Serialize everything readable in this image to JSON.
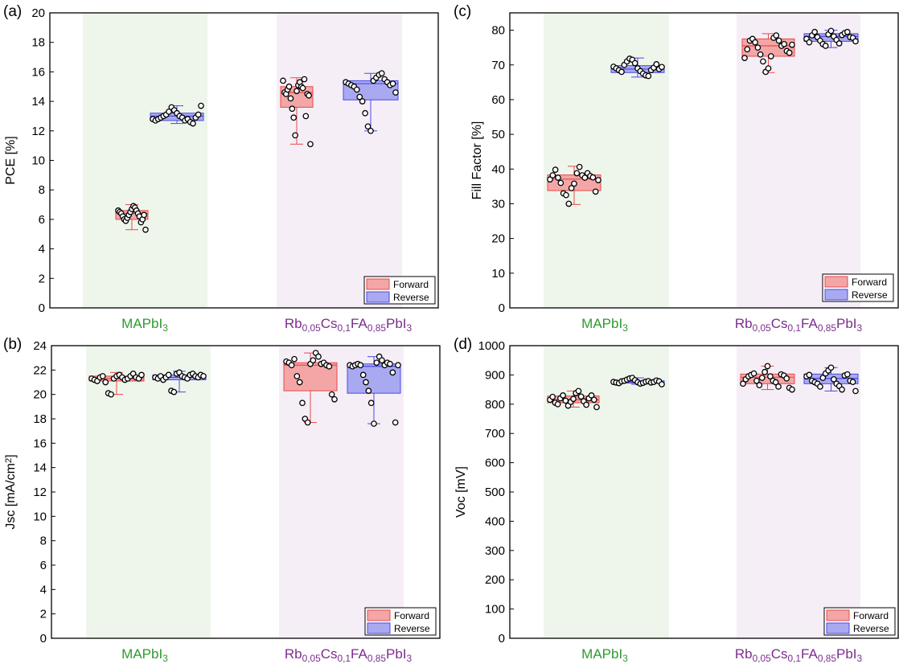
{
  "colors": {
    "forward_fill": "#f4a6a6",
    "forward_edge": "#e8484a",
    "reverse_fill": "#a9a9f2",
    "reverse_edge": "#4a4ae0",
    "band_green": "#eef6ec",
    "band_purple": "#f6eef7",
    "label_green": "#2e9a2e",
    "label_purple": "#7b2d8e"
  },
  "chart_data": [
    {
      "type": "box",
      "panel_label": "(a)",
      "ylabel": "PCE [%]",
      "ylim": [
        0,
        20
      ],
      "yticks": [
        "0",
        "2",
        "4",
        "6",
        "8",
        "10",
        "12",
        "14",
        "16",
        "18",
        "20"
      ],
      "categories": [
        {
          "parts": [
            {
              "t": "MAPbI",
              "s": "n"
            },
            {
              "t": "3",
              "s": "sub"
            }
          ]
        },
        {
          "parts": [
            {
              "t": "Rb",
              "s": "n"
            },
            {
              "t": "0,05",
              "s": "sub"
            },
            {
              "t": "Cs",
              "s": "n"
            },
            {
              "t": "0,1",
              "s": "sub"
            },
            {
              "t": "FA",
              "s": "n"
            },
            {
              "t": "0,85",
              "s": "sub"
            },
            {
              "t": "PbI",
              "s": "n"
            },
            {
              "t": "3",
              "s": "sub"
            }
          ]
        }
      ],
      "legend": [
        "Forward",
        "Reverse"
      ],
      "boxes": [
        {
          "category": 0,
          "series": "Forward",
          "min": 5.3,
          "q1": 6.0,
          "median": 6.4,
          "q3": 6.6,
          "max": 7.0,
          "points": [
            6.6,
            6.5,
            6.4,
            6.2,
            6.0,
            5.9,
            6.1,
            6.3,
            6.5,
            6.7,
            6.9,
            6.8,
            6.6,
            6.4,
            6.2,
            5.8,
            6.0,
            6.3,
            5.3
          ]
        },
        {
          "category": 0,
          "series": "Reverse",
          "min": 12.5,
          "q1": 12.7,
          "median": 13.0,
          "q3": 13.2,
          "max": 13.7,
          "points": [
            12.8,
            12.7,
            12.8,
            12.9,
            13.0,
            13.1,
            13.3,
            13.6,
            13.4,
            13.2,
            13.0,
            12.9,
            12.7,
            12.8,
            12.6,
            12.5,
            12.9,
            13.1,
            13.7
          ]
        },
        {
          "category": 1,
          "series": "Forward",
          "min": 11.1,
          "q1": 13.6,
          "median": 14.6,
          "q3": 15.0,
          "max": 15.6,
          "points": [
            15.4,
            14.6,
            14.5,
            14.8,
            15.0,
            14.2,
            13.5,
            12.9,
            11.7,
            14.7,
            15.1,
            15.3,
            15.0,
            14.9,
            15.5,
            13.0,
            14.5,
            14.4,
            11.1
          ]
        },
        {
          "category": 1,
          "series": "Reverse",
          "min": 12.0,
          "q1": 14.1,
          "median": 15.2,
          "q3": 15.4,
          "max": 15.9,
          "points": [
            15.3,
            15.2,
            15.1,
            15.0,
            14.8,
            14.3,
            14.0,
            13.2,
            12.3,
            12.0,
            15.4,
            15.6,
            15.8,
            15.9,
            15.5,
            15.3,
            15.1,
            15.2,
            14.6
          ]
        }
      ]
    },
    {
      "type": "box",
      "panel_label": "(b)",
      "ylabel_parts": [
        {
          "t": "Jsc [mA/cm",
          "s": "n"
        },
        {
          "t": "2",
          "s": "sup"
        },
        {
          "t": "]",
          "s": "n"
        }
      ],
      "ylim": [
        0,
        24
      ],
      "yticks": [
        "0",
        "2",
        "4",
        "6",
        "8",
        "10",
        "12",
        "14",
        "16",
        "18",
        "20",
        "22",
        "24"
      ],
      "categories": [
        {
          "parts": [
            {
              "t": "MAPbI",
              "s": "n"
            },
            {
              "t": "3",
              "s": "sub"
            }
          ]
        },
        {
          "parts": [
            {
              "t": "Rb",
              "s": "n"
            },
            {
              "t": "0,05",
              "s": "sub"
            },
            {
              "t": "Cs",
              "s": "n"
            },
            {
              "t": "0,1",
              "s": "sub"
            },
            {
              "t": "FA",
              "s": "n"
            },
            {
              "t": "0,85",
              "s": "sub"
            },
            {
              "t": "PbI",
              "s": "n"
            },
            {
              "t": "3",
              "s": "sub"
            }
          ]
        }
      ],
      "legend": [
        "Forward",
        "Reverse"
      ],
      "boxes": [
        {
          "category": 0,
          "series": "Forward",
          "min": 20.0,
          "q1": 21.1,
          "median": 21.3,
          "q3": 21.5,
          "max": 21.8,
          "points": [
            21.3,
            21.2,
            21.1,
            21.4,
            21.5,
            21.0,
            20.1,
            20.0,
            21.3,
            21.5,
            21.6,
            21.4,
            21.2,
            21.3,
            21.5,
            21.7,
            21.4,
            21.3,
            21.6
          ]
        },
        {
          "category": 0,
          "series": "Reverse",
          "min": 20.2,
          "q1": 21.2,
          "median": 21.4,
          "q3": 21.6,
          "max": 21.9,
          "points": [
            21.4,
            21.3,
            21.5,
            21.2,
            21.4,
            21.6,
            20.3,
            20.2,
            21.7,
            21.8,
            21.5,
            21.4,
            21.3,
            21.6,
            21.7,
            21.5,
            21.4,
            21.6,
            21.5
          ]
        },
        {
          "category": 1,
          "series": "Forward",
          "min": 17.7,
          "q1": 20.3,
          "median": 22.4,
          "q3": 22.6,
          "max": 23.4,
          "points": [
            22.7,
            22.6,
            22.4,
            22.9,
            21.5,
            21.0,
            19.3,
            18.0,
            17.7,
            22.5,
            22.8,
            23.4,
            23.1,
            22.5,
            22.6,
            22.4,
            22.3,
            20.0,
            19.6
          ]
        },
        {
          "category": 1,
          "series": "Reverse",
          "min": 17.6,
          "q1": 20.1,
          "median": 22.3,
          "q3": 22.5,
          "max": 23.1,
          "points": [
            22.4,
            22.3,
            22.4,
            22.5,
            22.4,
            21.6,
            21.0,
            20.3,
            19.3,
            17.6,
            22.6,
            23.1,
            22.8,
            22.4,
            22.6,
            22.5,
            21.8,
            17.7,
            22.4
          ]
        }
      ]
    },
    {
      "type": "box",
      "panel_label": "(c)",
      "ylabel": "Fill Factor [%]",
      "ylim": [
        0,
        85
      ],
      "yticks": [
        "0",
        "10",
        "20",
        "30",
        "40",
        "50",
        "60",
        "70",
        "80"
      ],
      "categories": [
        {
          "parts": [
            {
              "t": "MAPbI",
              "s": "n"
            },
            {
              "t": "3",
              "s": "sub"
            }
          ]
        },
        {
          "parts": [
            {
              "t": "Rb",
              "s": "n"
            },
            {
              "t": "0,05",
              "s": "sub"
            },
            {
              "t": "Cs",
              "s": "n"
            },
            {
              "t": "0,1",
              "s": "sub"
            },
            {
              "t": "FA",
              "s": "n"
            },
            {
              "t": "0,85",
              "s": "sub"
            },
            {
              "t": "PbI",
              "s": "n"
            },
            {
              "t": "3",
              "s": "sub"
            }
          ]
        }
      ],
      "legend": [
        "Forward",
        "Reverse"
      ],
      "boxes": [
        {
          "category": 0,
          "series": "Forward",
          "min": 29.8,
          "q1": 33.8,
          "median": 37.1,
          "q3": 38.3,
          "max": 40.8,
          "points": [
            37.0,
            38.2,
            39.8,
            37.5,
            36.0,
            33.0,
            32.5,
            30.0,
            34.5,
            35.8,
            38.8,
            40.6,
            38.2,
            37.5,
            38.8,
            38.0,
            37.6,
            33.5,
            36.8
          ]
        },
        {
          "category": 0,
          "series": "Reverse",
          "min": 66.5,
          "q1": 67.8,
          "median": 68.8,
          "q3": 69.8,
          "max": 72.0,
          "points": [
            69.5,
            69.0,
            68.5,
            68.0,
            70.0,
            71.0,
            71.8,
            71.5,
            70.5,
            69.0,
            68.2,
            67.5,
            67.0,
            66.8,
            68.5,
            69.2,
            70.2,
            68.8,
            69.4
          ]
        },
        {
          "category": 1,
          "series": "Forward",
          "min": 67.8,
          "q1": 72.5,
          "median": 75.5,
          "q3": 77.5,
          "max": 79.0,
          "points": [
            72.0,
            74.5,
            77.0,
            77.5,
            76.5,
            75.0,
            73.0,
            71.0,
            68.0,
            69.0,
            72.5,
            77.8,
            78.5,
            77.0,
            75.5,
            76.0,
            74.0,
            73.5,
            75.8
          ]
        },
        {
          "category": 1,
          "series": "Reverse",
          "min": 75.0,
          "q1": 76.8,
          "median": 78.2,
          "q3": 79.0,
          "max": 80.0,
          "points": [
            77.5,
            76.5,
            78.5,
            79.5,
            78.0,
            77.0,
            76.0,
            75.5,
            78.8,
            79.8,
            78.2,
            77.2,
            76.2,
            78.6,
            79.2,
            79.5,
            78.0,
            77.8,
            76.8
          ]
        }
      ]
    },
    {
      "type": "box",
      "panel_label": "(d)",
      "ylabel": "Voc [mV]",
      "ylim": [
        0,
        1000
      ],
      "yticks": [
        "0",
        "100",
        "200",
        "300",
        "400",
        "500",
        "600",
        "700",
        "800",
        "900",
        "1000"
      ],
      "categories": [
        {
          "parts": [
            {
              "t": "MAPbI",
              "s": "n"
            },
            {
              "t": "3",
              "s": "sub"
            }
          ]
        },
        {
          "parts": [
            {
              "t": "Rb",
              "s": "n"
            },
            {
              "t": "0,05",
              "s": "sub"
            },
            {
              "t": "Cs",
              "s": "n"
            },
            {
              "t": "0,1",
              "s": "sub"
            },
            {
              "t": "FA",
              "s": "n"
            },
            {
              "t": "0,85",
              "s": "sub"
            },
            {
              "t": "PbI",
              "s": "n"
            },
            {
              "t": "3",
              "s": "sub"
            }
          ]
        }
      ],
      "legend": [
        "Forward",
        "Reverse"
      ],
      "boxes": [
        {
          "category": 0,
          "series": "Forward",
          "min": 790,
          "q1": 805,
          "median": 815,
          "q3": 828,
          "max": 845,
          "points": [
            815,
            825,
            805,
            800,
            820,
            830,
            812,
            795,
            808,
            818,
            838,
            845,
            826,
            810,
            798,
            820,
            830,
            815,
            790
          ]
        },
        {
          "category": 0,
          "series": "Reverse",
          "min": 868,
          "q1": 872,
          "median": 876,
          "q3": 880,
          "max": 890,
          "points": [
            876,
            874,
            872,
            878,
            880,
            884,
            888,
            890,
            882,
            875,
            870,
            873,
            877,
            879,
            874,
            876,
            881,
            878,
            868
          ]
        },
        {
          "category": 1,
          "series": "Forward",
          "min": 850,
          "q1": 870,
          "median": 892,
          "q3": 903,
          "max": 930,
          "points": [
            870,
            885,
            895,
            900,
            905,
            880,
            865,
            890,
            910,
            930,
            895,
            880,
            875,
            860,
            902,
            898,
            888,
            856,
            850
          ]
        },
        {
          "category": 1,
          "series": "Reverse",
          "min": 845,
          "q1": 870,
          "median": 888,
          "q3": 903,
          "max": 925,
          "points": [
            895,
            900,
            880,
            875,
            870,
            860,
            890,
            905,
            915,
            925,
            885,
            870,
            862,
            850,
            898,
            902,
            880,
            876,
            845
          ]
        }
      ]
    }
  ]
}
